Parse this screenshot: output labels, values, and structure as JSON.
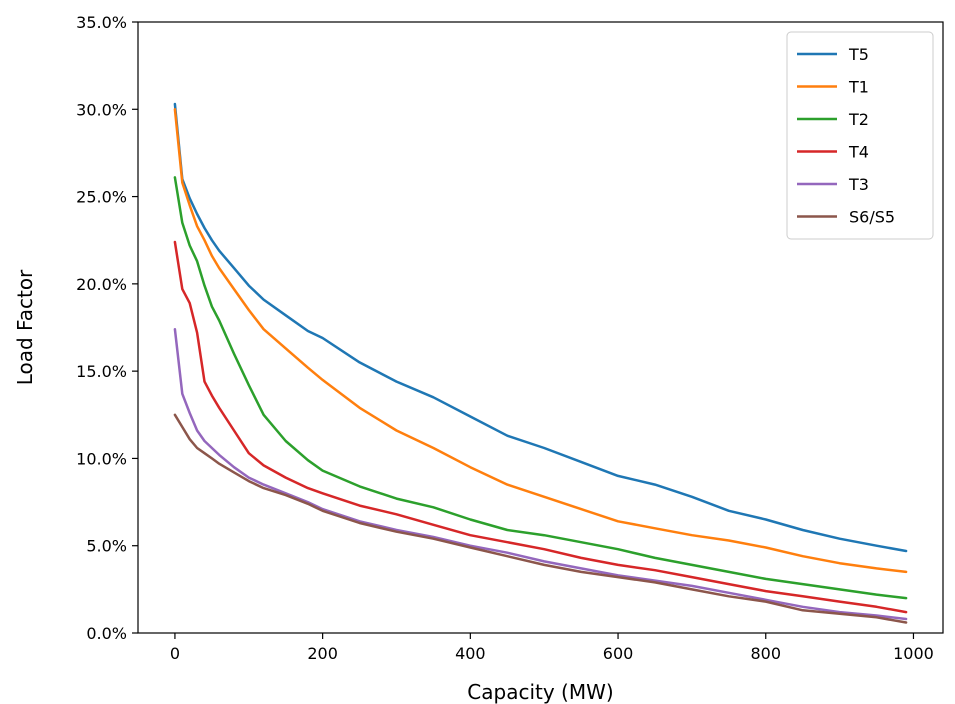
{
  "chart_data": {
    "type": "line",
    "xlabel": "Capacity (MW)",
    "ylabel": "Load Factor",
    "xlim": [
      -50,
      1040
    ],
    "ylim": [
      0,
      35
    ],
    "xticks": [
      0,
      200,
      400,
      600,
      800,
      1000
    ],
    "yticks": [
      0,
      5,
      10,
      15,
      20,
      25,
      30,
      35
    ],
    "xtick_labels": [
      "0",
      "200",
      "400",
      "600",
      "800",
      "1000"
    ],
    "ytick_labels": [
      "0.0%",
      "5.0%",
      "10.0%",
      "15.0%",
      "20.0%",
      "25.0%",
      "30.0%",
      "35.0%"
    ],
    "grid": false,
    "legend_position": "top-right",
    "x": [
      0,
      10,
      20,
      30,
      40,
      50,
      60,
      80,
      100,
      120,
      150,
      180,
      200,
      250,
      300,
      350,
      400,
      450,
      500,
      550,
      600,
      650,
      700,
      750,
      800,
      850,
      900,
      950,
      990
    ],
    "series": [
      {
        "name": "T5",
        "color": "#1f77b4",
        "values": [
          30.3,
          26.0,
          24.9,
          24.0,
          23.2,
          22.5,
          21.9,
          20.9,
          19.9,
          19.1,
          18.2,
          17.3,
          16.9,
          15.5,
          14.4,
          13.5,
          12.4,
          11.3,
          10.6,
          9.8,
          9.0,
          8.5,
          7.8,
          7.0,
          6.5,
          5.9,
          5.4,
          5.0,
          4.7
        ]
      },
      {
        "name": "T1",
        "color": "#ff7f0e",
        "values": [
          30.0,
          25.8,
          24.5,
          23.3,
          22.5,
          21.6,
          20.9,
          19.7,
          18.5,
          17.4,
          16.3,
          15.2,
          14.5,
          12.9,
          11.6,
          10.6,
          9.5,
          8.5,
          7.8,
          7.1,
          6.4,
          6.0,
          5.6,
          5.3,
          4.9,
          4.4,
          4.0,
          3.7,
          3.5
        ]
      },
      {
        "name": "T2",
        "color": "#2ca02c",
        "values": [
          26.1,
          23.5,
          22.2,
          21.3,
          19.9,
          18.7,
          17.9,
          16.0,
          14.2,
          12.5,
          11.0,
          9.9,
          9.3,
          8.4,
          7.7,
          7.2,
          6.5,
          5.9,
          5.6,
          5.2,
          4.8,
          4.3,
          3.9,
          3.5,
          3.1,
          2.8,
          2.5,
          2.2,
          2.0
        ]
      },
      {
        "name": "T4",
        "color": "#d62728",
        "values": [
          22.4,
          19.7,
          18.9,
          17.2,
          14.4,
          13.6,
          12.9,
          11.6,
          10.3,
          9.6,
          8.9,
          8.3,
          8.0,
          7.3,
          6.8,
          6.2,
          5.6,
          5.2,
          4.8,
          4.3,
          3.9,
          3.6,
          3.2,
          2.8,
          2.4,
          2.1,
          1.8,
          1.5,
          1.2
        ]
      },
      {
        "name": "T3",
        "color": "#9467bd",
        "values": [
          17.4,
          13.7,
          12.6,
          11.6,
          11.0,
          10.6,
          10.2,
          9.5,
          8.9,
          8.5,
          8.0,
          7.5,
          7.1,
          6.4,
          5.9,
          5.5,
          5.0,
          4.6,
          4.1,
          3.7,
          3.3,
          3.0,
          2.7,
          2.3,
          1.9,
          1.5,
          1.2,
          1.0,
          0.8
        ]
      },
      {
        "name": "S6/S5",
        "color": "#8c564b",
        "values": [
          12.5,
          11.8,
          11.1,
          10.6,
          10.3,
          10.0,
          9.7,
          9.2,
          8.7,
          8.3,
          7.9,
          7.4,
          7.0,
          6.3,
          5.8,
          5.4,
          4.9,
          4.4,
          3.9,
          3.5,
          3.2,
          2.9,
          2.5,
          2.1,
          1.8,
          1.3,
          1.1,
          0.9,
          0.6
        ]
      }
    ]
  }
}
